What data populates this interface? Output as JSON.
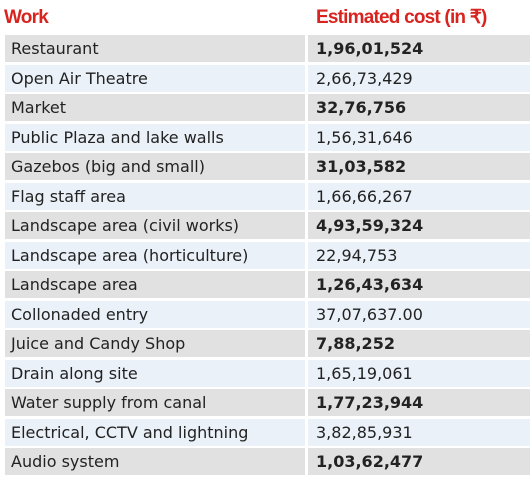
{
  "table": {
    "header": [
      "Work",
      "Estimated cost (in ₹)"
    ],
    "rows": [
      [
        "Restaurant",
        "1,96,01,524"
      ],
      [
        "Open Air Theatre",
        "2,66,73,429"
      ],
      [
        "Market",
        "32,76,756"
      ],
      [
        "Public Plaza and lake walls",
        "1,56,31,646"
      ],
      [
        "Gazebos (big and small)",
        "31,03,582"
      ],
      [
        "Flag staff area",
        "1,66,66,267"
      ],
      [
        "Landscape area (civil works)",
        "4,93,59,324"
      ],
      [
        "Landscape area (horticulture)",
        "22,94,753"
      ],
      [
        "Landscape area",
        "1,26,43,634"
      ],
      [
        "Collonaded entry",
        "37,07,637.00"
      ],
      [
        "Juice and Candy Shop",
        "7,88,252"
      ],
      [
        "Drain along site",
        "1,65,19,061"
      ],
      [
        "Water supply from canal",
        "1,77,23,944"
      ],
      [
        "Electrical, CCTV and lightning",
        "3,82,85,931"
      ],
      [
        "Audio system",
        "1,03,62,477"
      ]
    ]
  }
}
